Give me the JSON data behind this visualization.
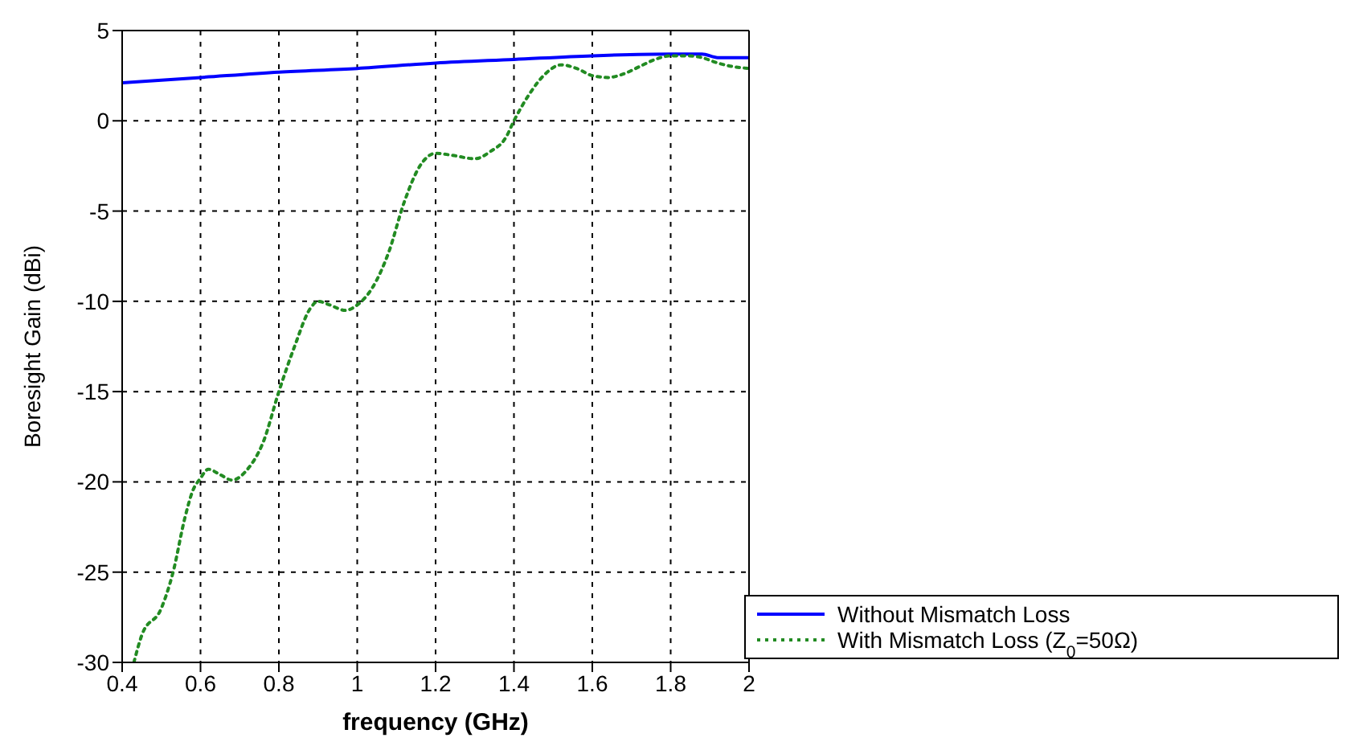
{
  "chart_data": {
    "type": "line",
    "xlabel": "frequency (GHz)",
    "ylabel": "Boresight Gain (dBi)",
    "xlim": [
      0.4,
      2
    ],
    "ylim": [
      -30,
      5
    ],
    "xticks": [
      0.4,
      0.6,
      0.8,
      1,
      1.2,
      1.4,
      1.6,
      1.8,
      2
    ],
    "yticks": [
      -30,
      -25,
      -20,
      -15,
      -10,
      -5,
      0,
      5
    ],
    "grid": true,
    "legend": "bottom right",
    "series": [
      {
        "name": "Without Mismatch Loss",
        "color": "#0000ff",
        "line_style": "solid",
        "x": [
          0.4,
          0.6,
          0.8,
          1.0,
          1.2,
          1.4,
          1.6,
          1.8,
          1.88,
          1.92,
          2.0
        ],
        "values": [
          2.1,
          2.4,
          2.7,
          2.9,
          3.2,
          3.4,
          3.6,
          3.7,
          3.7,
          3.5,
          3.5
        ]
      },
      {
        "name": "With Mismatch Loss (Z$_{0}$=50Ω)",
        "color": "#228b22",
        "line_style": "dotted",
        "x": [
          0.43,
          0.45,
          0.5,
          0.53,
          0.56,
          0.58,
          0.6,
          0.62,
          0.65,
          0.68,
          0.72,
          0.76,
          0.8,
          0.84,
          0.88,
          0.9,
          0.93,
          0.97,
          1.0,
          1.04,
          1.08,
          1.12,
          1.16,
          1.2,
          1.24,
          1.3,
          1.34,
          1.38,
          1.4,
          1.44,
          1.48,
          1.52,
          1.56,
          1.6,
          1.64,
          1.68,
          1.72,
          1.76,
          1.8,
          1.84,
          1.88,
          1.92,
          1.96,
          2.0
        ],
        "values": [
          -30,
          -28.5,
          -27,
          -25,
          -22,
          -20.5,
          -19.8,
          -19.3,
          -19.6,
          -19.9,
          -19.3,
          -17.8,
          -15,
          -12.5,
          -10.4,
          -10,
          -10.2,
          -10.5,
          -10.2,
          -9.2,
          -7.3,
          -4.5,
          -2.5,
          -1.8,
          -1.9,
          -2.1,
          -1.7,
          -0.9,
          0,
          1.5,
          2.6,
          3.1,
          2.9,
          2.5,
          2.4,
          2.6,
          3.0,
          3.4,
          3.6,
          3.6,
          3.5,
          3.2,
          3.0,
          2.9
        ]
      }
    ]
  }
}
